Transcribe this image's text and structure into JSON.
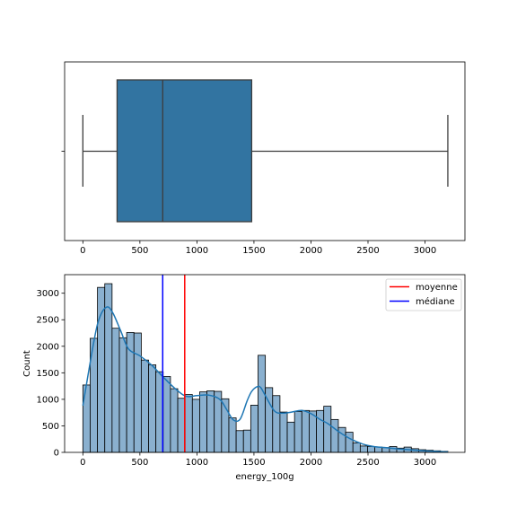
{
  "chart_data": [
    {
      "type": "box",
      "xlim": [
        -160,
        3350
      ],
      "xticks": [
        0,
        500,
        1000,
        1500,
        2000,
        2500,
        3000
      ],
      "box": {
        "whisker_low": 0,
        "q1": 300,
        "median": 700,
        "q3": 1480,
        "whisker_high": 3200
      },
      "color": "#3274a1"
    },
    {
      "type": "bar",
      "subtype": "histogram",
      "xlabel": "energy_100g",
      "ylabel": "Count",
      "xlim": [
        -160,
        3350
      ],
      "ylim": [
        0,
        3350
      ],
      "xticks": [
        0,
        500,
        1000,
        1500,
        2000,
        2500,
        3000
      ],
      "yticks": [
        0,
        500,
        1000,
        1500,
        2000,
        2500,
        3000
      ],
      "bin_start": 0,
      "bin_width": 64,
      "values": [
        1270,
        2150,
        3110,
        3180,
        2340,
        2160,
        2260,
        2250,
        1740,
        1650,
        1520,
        1430,
        1200,
        1020,
        1090,
        1000,
        1140,
        1160,
        1150,
        1010,
        650,
        410,
        420,
        890,
        1830,
        1220,
        1070,
        760,
        570,
        770,
        790,
        780,
        790,
        870,
        620,
        470,
        380,
        180,
        120,
        110,
        100,
        90,
        110,
        80,
        100,
        70,
        50,
        40,
        30,
        20
      ],
      "kde": {
        "x": [
          0,
          100,
          150,
          210,
          260,
          330,
          400,
          500,
          600,
          700,
          800,
          900,
          1000,
          1100,
          1200,
          1260,
          1320,
          1380,
          1440,
          1480,
          1530,
          1560,
          1600,
          1680,
          1750,
          1830,
          1920,
          2000,
          2080,
          2150,
          2250,
          2350,
          2450,
          2550,
          2650,
          2800,
          3000,
          3200
        ],
        "y": [
          880,
          2130,
          2560,
          2740,
          2640,
          2300,
          1950,
          1820,
          1650,
          1430,
          1220,
          1060,
          1070,
          1080,
          1000,
          810,
          610,
          630,
          970,
          1150,
          1240,
          1220,
          1070,
          780,
          740,
          760,
          790,
          730,
          620,
          540,
          380,
          250,
          160,
          110,
          90,
          60,
          30,
          10
        ]
      },
      "mean_line": {
        "label": "moyenne",
        "value": 893,
        "color": "#ff0000"
      },
      "median_line": {
        "label": "médiane",
        "value": 700,
        "color": "#0000ff"
      },
      "legend_position": "top-right",
      "bar_color": "#8ab0cf",
      "line_color": "#1f77b4"
    }
  ]
}
